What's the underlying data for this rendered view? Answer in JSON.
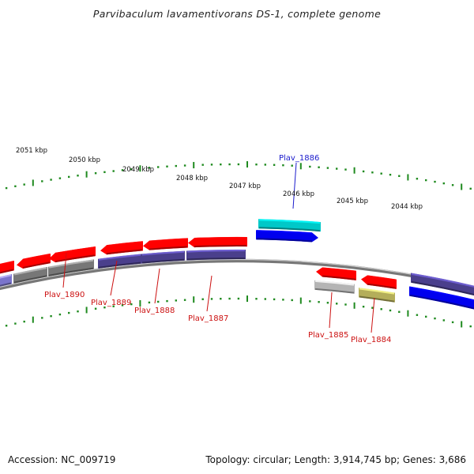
{
  "title": "Parvibaculum lavamentivorans DS-1, complete genome",
  "footer": {
    "accession": "Accession: NC_009719",
    "stats": "Topology: circular; Length: 3,914,745 bp; Genes: 3,686"
  },
  "scale_labels": [
    "2051 kbp",
    "2050 kbp",
    "2049 kbp",
    "2048 kbp",
    "2047 kbp",
    "2046 kbp",
    "2045 kbp",
    "2044 kbp"
  ],
  "gene_labels": [
    {
      "text": "Plav_1886",
      "color": "#1a1acc"
    },
    {
      "text": "Plav_1890",
      "color": "#cc1111"
    },
    {
      "text": "Plav_1889",
      "color": "#cc1111"
    },
    {
      "text": "Plav_1888",
      "color": "#cc1111"
    },
    {
      "text": "Plav_1887",
      "color": "#cc1111"
    },
    {
      "text": "Plav_1885",
      "color": "#cc1111"
    },
    {
      "text": "Plav_1884",
      "color": "#cc1111"
    }
  ],
  "colors": {
    "forward_gene": "#ff0000",
    "reverse_gene_blue": "#0000ee",
    "cyan_gene": "#00c8c8",
    "cog_purple": "#4a3f8c",
    "cog_gray": "#777777",
    "cog_lightgray": "#b4b4b4",
    "cog_olive": "#b4ae5a",
    "backbone": "#888888",
    "scale_ticks": "#1f8a1f"
  }
}
